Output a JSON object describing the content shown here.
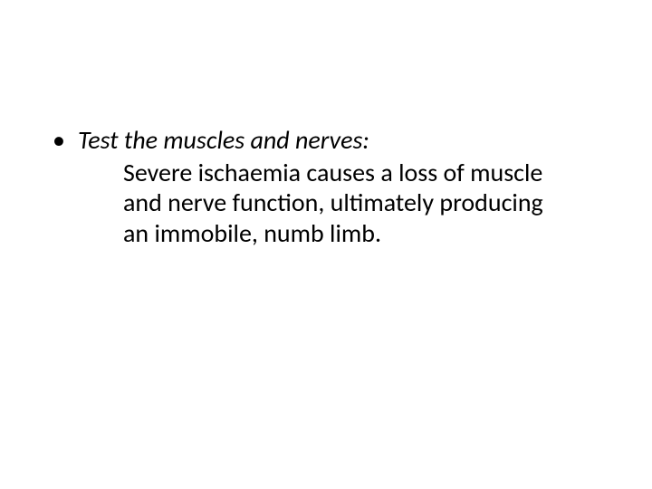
{
  "slide": {
    "background_color": "#ffffff",
    "text_color": "#000000",
    "font_family": "Calibri",
    "bullet": {
      "marker": "•",
      "heading": "Test the muscles and nerves:",
      "heading_style": {
        "italic": true,
        "fontsize_pt": 28
      },
      "body": "Severe ischaemia causes a loss of muscle and nerve function, ultimately producing an immobile, numb limb.",
      "body_style": {
        "italic": false,
        "fontsize_pt": 28
      }
    }
  }
}
